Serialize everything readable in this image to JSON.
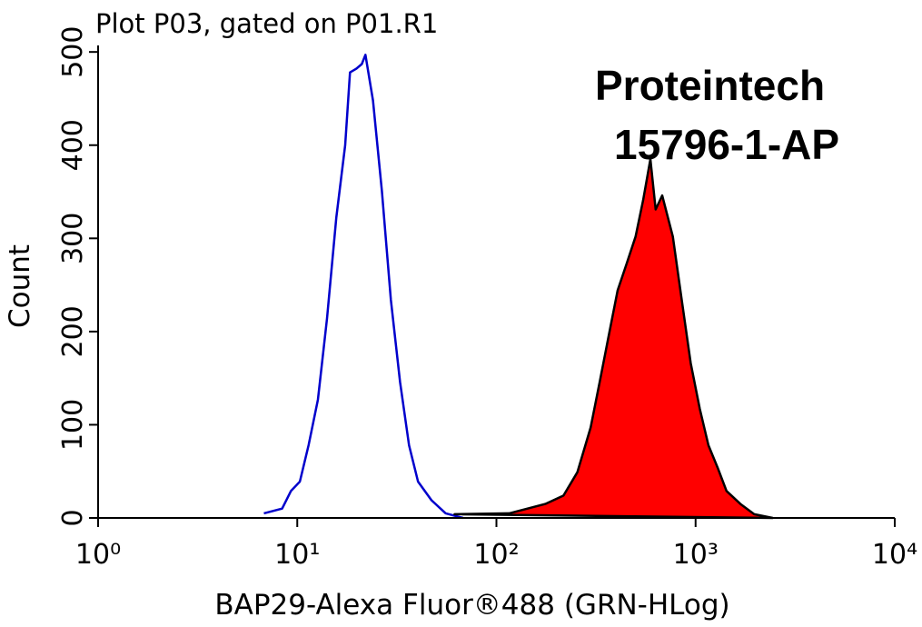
{
  "chart_data": {
    "type": "histogram-overlay",
    "title": "Plot P03, gated on P01.R1",
    "x_label": "BAP29-Alexa Fluor®488 (GRN-HLog)",
    "y_label": "Count",
    "annotations": [
      "Proteintech",
      "15796-1-AP"
    ],
    "xscale": "log",
    "xlim": [
      1,
      10000
    ],
    "xticks": [
      {
        "value": 1,
        "label": "10⁰"
      },
      {
        "value": 10,
        "label": "10¹"
      },
      {
        "value": 100,
        "label": "10²"
      },
      {
        "value": 1000,
        "label": "10³"
      },
      {
        "value": 10000,
        "label": "10⁴"
      }
    ],
    "ylim": [
      0,
      507
    ],
    "yticks": [
      0,
      100,
      200,
      300,
      400,
      500
    ],
    "series": [
      {
        "color": "#0000cc",
        "fill": false,
        "x": [
          6.8,
          8.4,
          9.3,
          10.3,
          11.4,
          12.7,
          14.1,
          15.7,
          17.4,
          18.4,
          19.8,
          21.1,
          22.0,
          24.0,
          26.6,
          29.5,
          32.8,
          36.4,
          40.4,
          47.2,
          55.6,
          68
        ],
        "values": [
          5,
          10,
          29,
          39,
          78,
          127,
          214,
          322,
          400,
          478,
          482,
          487,
          497,
          448,
          351,
          234,
          146,
          78,
          39,
          19,
          5,
          0
        ]
      },
      {
        "color": "#ff0000",
        "fill": true,
        "x": [
          61.6,
          116,
          176,
          217,
          255,
          297,
          330,
          366,
          406,
          451,
          500,
          545,
          593,
          630,
          680,
          769,
          852,
          945,
          1050,
          1160,
          1290,
          1430,
          1680,
          1970,
          2440
        ],
        "values": [
          4,
          5,
          15,
          24,
          49,
          97,
          146,
          195,
          244,
          273,
          302,
          341,
          385,
          331,
          346,
          302,
          234,
          166,
          117,
          78,
          54,
          29,
          15,
          4,
          0
        ]
      }
    ]
  }
}
